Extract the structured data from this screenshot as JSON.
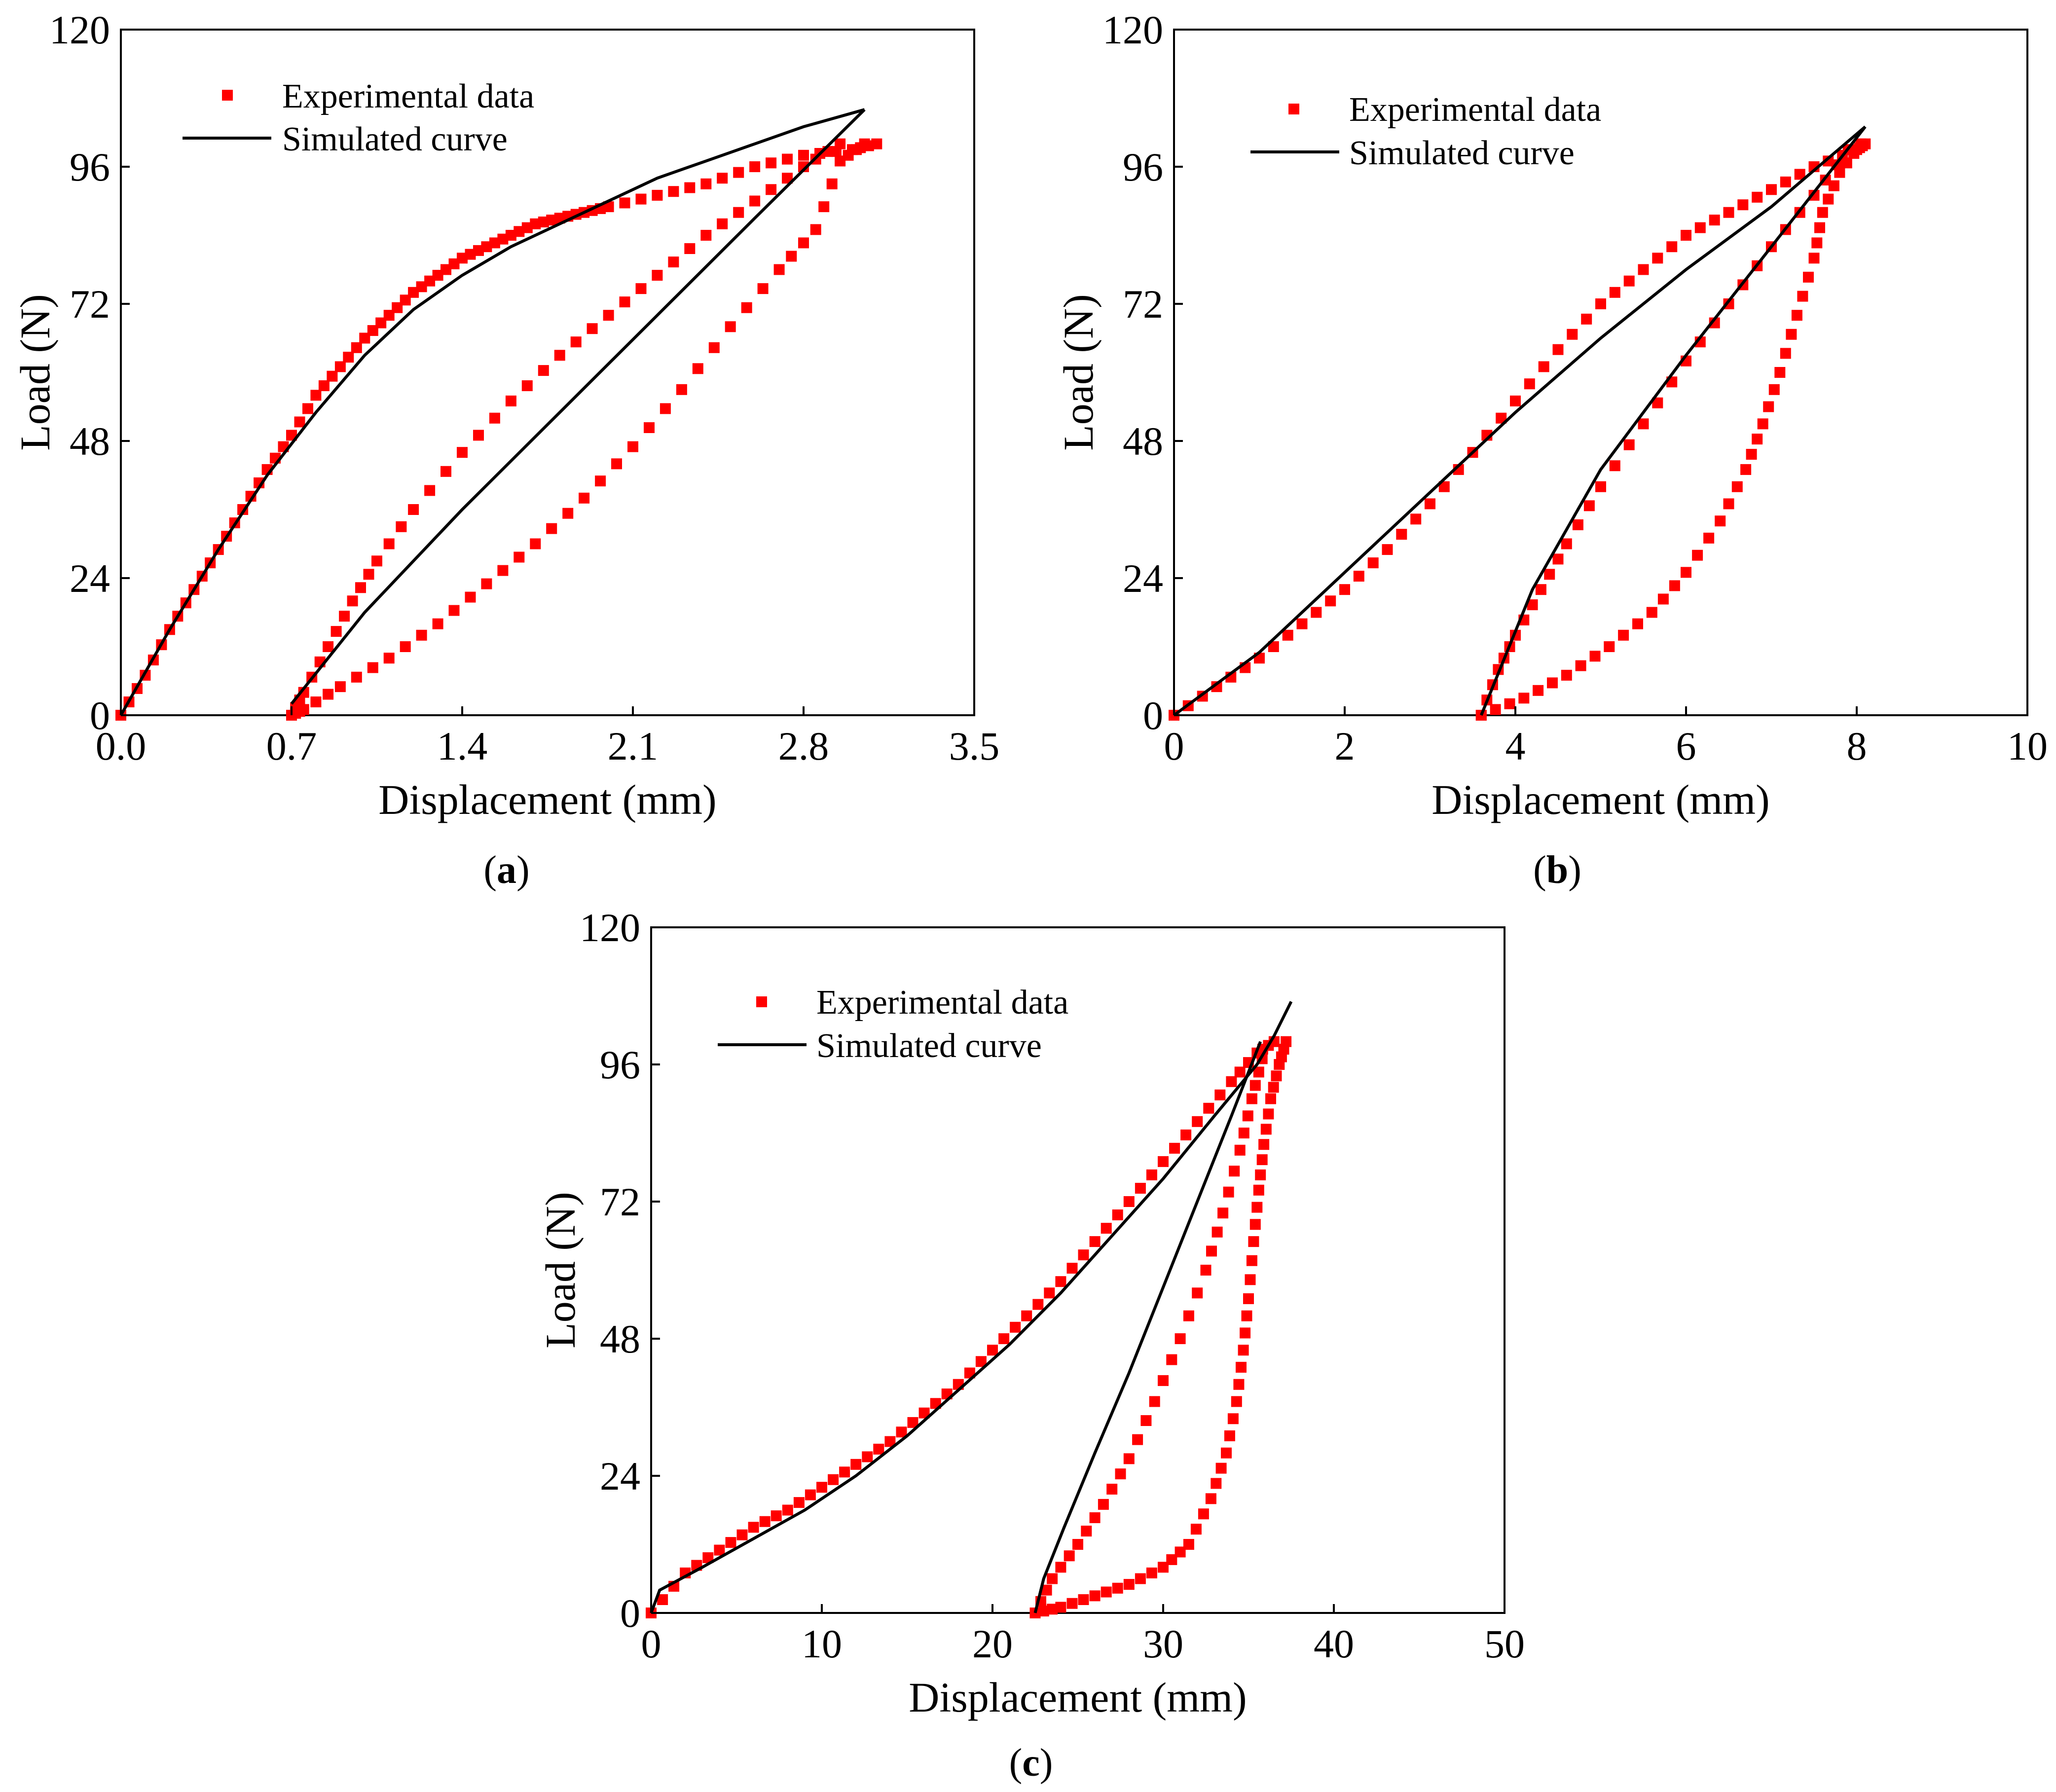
{
  "figure": {
    "panels": [
      {
        "caption_letter": "a",
        "xlabel": "Displacement (mm)",
        "ylabel": "Load (N)",
        "legend": {
          "experimental": "Experimental data",
          "simulated": "Simulated curve"
        }
      },
      {
        "caption_letter": "b",
        "xlabel": "Displacement (mm)",
        "ylabel": "Load (N)",
        "legend": {
          "experimental": "Experimental data",
          "simulated": "Simulated curve"
        }
      },
      {
        "caption_letter": "c",
        "xlabel": "Displacement (mm)",
        "ylabel": "Load (N)",
        "legend": {
          "experimental": "Experimental data",
          "simulated": "Simulated curve"
        }
      }
    ]
  },
  "chart_data": [
    {
      "panel": "a",
      "type": "scatter",
      "xlabel": "Displacement (mm)",
      "ylabel": "Load (N)",
      "xlim": [
        0.0,
        3.5
      ],
      "ylim": [
        0,
        120
      ],
      "x_ticks": [
        "0.0",
        "0.7",
        "1.4",
        "2.1",
        "2.8",
        "3.5"
      ],
      "y_ticks": [
        "0",
        "24",
        "48",
        "72",
        "96",
        "120"
      ],
      "legend_position": "top-left",
      "series": [
        {
          "name": "Experimental data",
          "marker": "square",
          "color": "#ff0000",
          "loading": [
            [
              0.0,
              0
            ],
            [
              0.1,
              7
            ],
            [
              0.2,
              15
            ],
            [
              0.3,
              22
            ],
            [
              0.4,
              29
            ],
            [
              0.5,
              36
            ],
            [
              0.6,
              43
            ],
            [
              0.7,
              49
            ],
            [
              0.8,
              56
            ],
            [
              0.9,
              61
            ],
            [
              1.0,
              66
            ],
            [
              1.1,
              70
            ],
            [
              1.2,
              74
            ],
            [
              1.3,
              77
            ],
            [
              1.4,
              80
            ],
            [
              1.5,
              82
            ],
            [
              1.6,
              84
            ],
            [
              1.7,
              86
            ],
            [
              1.8,
              87
            ],
            [
              1.9,
              88
            ],
            [
              2.0,
              89
            ],
            [
              2.2,
              91
            ],
            [
              2.4,
              93
            ],
            [
              2.6,
              96
            ],
            [
              2.8,
              98
            ],
            [
              3.0,
              99
            ],
            [
              3.1,
              100
            ]
          ],
          "unloading": [
            [
              3.05,
              100
            ],
            [
              2.95,
              97
            ],
            [
              2.85,
              85
            ],
            [
              2.7,
              78
            ],
            [
              2.5,
              68
            ],
            [
              2.3,
              57
            ],
            [
              2.1,
              47
            ],
            [
              1.9,
              38
            ],
            [
              1.7,
              30
            ],
            [
              1.5,
              23
            ],
            [
              1.3,
              16
            ],
            [
              1.1,
              10
            ],
            [
              0.9,
              5
            ],
            [
              0.75,
              1
            ],
            [
              0.7,
              0
            ]
          ],
          "reloading": [
            [
              0.7,
              0
            ],
            [
              0.75,
              4
            ],
            [
              0.85,
              12
            ],
            [
              0.95,
              20
            ],
            [
              1.05,
              27
            ],
            [
              1.2,
              36
            ],
            [
              1.4,
              46
            ],
            [
              1.6,
              55
            ],
            [
              1.8,
              63
            ],
            [
              2.0,
              70
            ],
            [
              2.2,
              77
            ],
            [
              2.4,
              84
            ],
            [
              2.6,
              90
            ],
            [
              2.8,
              96
            ],
            [
              2.95,
              100
            ]
          ]
        },
        {
          "name": "Simulated curve",
          "color": "#000000",
          "loading": [
            [
              0.0,
              0
            ],
            [
              0.2,
              15
            ],
            [
              0.4,
              29
            ],
            [
              0.6,
              42
            ],
            [
              0.8,
              53
            ],
            [
              1.0,
              63
            ],
            [
              1.2,
              71
            ],
            [
              1.4,
              77
            ],
            [
              1.6,
              82
            ],
            [
              1.8,
              86
            ],
            [
              2.0,
              90
            ],
            [
              2.2,
              94
            ],
            [
              2.4,
              97
            ],
            [
              2.6,
              100
            ],
            [
              2.8,
              103
            ],
            [
              3.05,
              106
            ]
          ],
          "unloading": [
            [
              3.05,
              106
            ],
            [
              2.6,
              87
            ],
            [
              2.2,
              70
            ],
            [
              1.8,
              53
            ],
            [
              1.4,
              36
            ],
            [
              1.0,
              18
            ],
            [
              0.7,
              2
            ]
          ]
        }
      ]
    },
    {
      "panel": "b",
      "type": "scatter",
      "xlabel": "Displacement (mm)",
      "ylabel": "Load (N)",
      "xlim": [
        0,
        10
      ],
      "ylim": [
        0,
        120
      ],
      "x_ticks": [
        "0",
        "2",
        "4",
        "6",
        "8",
        "10"
      ],
      "y_ticks": [
        "0",
        "24",
        "48",
        "72",
        "96",
        "120"
      ],
      "legend_position": "top-left",
      "series": [
        {
          "name": "Experimental data",
          "marker": "square",
          "color": "#ff0000",
          "loading": [
            [
              0.0,
              0
            ],
            [
              0.5,
              5
            ],
            [
              1.0,
              10
            ],
            [
              1.5,
              16
            ],
            [
              2.0,
              22
            ],
            [
              2.5,
              29
            ],
            [
              3.0,
              37
            ],
            [
              3.5,
              46
            ],
            [
              4.0,
              55
            ],
            [
              4.5,
              64
            ],
            [
              5.0,
              72
            ],
            [
              5.5,
              78
            ],
            [
              6.0,
              84
            ],
            [
              6.5,
              88
            ],
            [
              7.0,
              92
            ],
            [
              7.5,
              96
            ],
            [
              8.0,
              99
            ],
            [
              8.1,
              100
            ]
          ],
          "unloading": [
            [
              8.05,
              100
            ],
            [
              7.8,
              95
            ],
            [
              7.6,
              88
            ],
            [
              7.5,
              80
            ],
            [
              7.3,
              70
            ],
            [
              7.1,
              60
            ],
            [
              6.9,
              51
            ],
            [
              6.7,
              43
            ],
            [
              6.4,
              34
            ],
            [
              6.0,
              25
            ],
            [
              5.6,
              18
            ],
            [
              5.1,
              12
            ],
            [
              4.6,
              7
            ],
            [
              4.1,
              3
            ],
            [
              3.6,
              0
            ]
          ],
          "reloading": [
            [
              3.6,
              0
            ],
            [
              3.8,
              8
            ],
            [
              4.0,
              14
            ],
            [
              4.3,
              22
            ],
            [
              4.6,
              30
            ],
            [
              5.0,
              40
            ],
            [
              5.5,
              51
            ],
            [
              6.0,
              62
            ],
            [
              6.5,
              72
            ],
            [
              7.0,
              82
            ],
            [
              7.5,
              91
            ],
            [
              7.9,
              99
            ]
          ]
        },
        {
          "name": "Simulated curve",
          "color": "#000000",
          "loading": [
            [
              0.0,
              0
            ],
            [
              1.0,
              11
            ],
            [
              2.0,
              25
            ],
            [
              3.0,
              39
            ],
            [
              4.0,
              53
            ],
            [
              5.0,
              66
            ],
            [
              6.0,
              78
            ],
            [
              7.0,
              89
            ],
            [
              8.1,
              103
            ]
          ],
          "unloading": [
            [
              8.1,
              103
            ],
            [
              7.0,
              82
            ],
            [
              6.0,
              63
            ],
            [
              5.0,
              43
            ],
            [
              4.2,
              22
            ],
            [
              3.6,
              0
            ]
          ]
        }
      ]
    },
    {
      "panel": "c",
      "type": "scatter",
      "xlabel": "Displacement (mm)",
      "ylabel": "Load (N)",
      "xlim": [
        0,
        50
      ],
      "ylim": [
        0,
        120
      ],
      "x_ticks": [
        "0",
        "10",
        "20",
        "30",
        "40",
        "50"
      ],
      "y_ticks": [
        "0",
        "24",
        "48",
        "72",
        "96",
        "120"
      ],
      "legend_position": "top-left",
      "series": [
        {
          "name": "Experimental data",
          "marker": "square",
          "color": "#ff0000",
          "loading": [
            [
              0.0,
              0
            ],
            [
              2,
              7
            ],
            [
              4,
              11
            ],
            [
              6,
              15
            ],
            [
              8,
              18
            ],
            [
              10,
              22
            ],
            [
              12,
              26
            ],
            [
              14,
              30
            ],
            [
              16,
              35
            ],
            [
              18,
              40
            ],
            [
              20,
              46
            ],
            [
              22,
              52
            ],
            [
              24,
              58
            ],
            [
              26,
              65
            ],
            [
              28,
              72
            ],
            [
              30,
              79
            ],
            [
              32,
              86
            ],
            [
              34,
              93
            ],
            [
              35.5,
              98
            ],
            [
              36.5,
              100
            ]
          ],
          "unloading": [
            [
              37.2,
              100
            ],
            [
              36.8,
              96
            ],
            [
              36.3,
              90
            ],
            [
              35.9,
              82
            ],
            [
              35.6,
              74
            ],
            [
              35.3,
              65
            ],
            [
              35.0,
              55
            ],
            [
              34.7,
              46
            ],
            [
              34.3,
              37
            ],
            [
              33.7,
              28
            ],
            [
              32.8,
              20
            ],
            [
              31.5,
              12
            ],
            [
              30.0,
              8
            ],
            [
              28,
              5
            ],
            [
              26,
              3
            ],
            [
              24,
              1
            ],
            [
              22.5,
              0
            ]
          ],
          "reloading": [
            [
              22.5,
              0
            ],
            [
              23.5,
              6
            ],
            [
              25,
              12
            ],
            [
              26.5,
              19
            ],
            [
              28,
              27
            ],
            [
              29.5,
              37
            ],
            [
              31,
              48
            ],
            [
              32.5,
              60
            ],
            [
              33.5,
              70
            ],
            [
              34.5,
              81
            ],
            [
              35.2,
              90
            ],
            [
              35.8,
              97
            ]
          ]
        },
        {
          "name": "Simulated curve",
          "color": "#000000",
          "loading": [
            [
              0.0,
              0
            ],
            [
              0.5,
              4
            ],
            [
              3,
              8
            ],
            [
              6,
              13
            ],
            [
              9,
              18
            ],
            [
              12,
              24
            ],
            [
              15,
              31
            ],
            [
              18,
              39
            ],
            [
              21,
              47
            ],
            [
              24,
              56
            ],
            [
              27,
              66
            ],
            [
              30,
              76
            ],
            [
              33,
              87
            ],
            [
              35.5,
              96
            ],
            [
              36.5,
              101
            ],
            [
              37.5,
              107
            ]
          ],
          "unloading": [
            [
              35.7,
              100
            ],
            [
              34,
              87
            ],
            [
              32,
              72
            ],
            [
              30,
              57
            ],
            [
              28,
              42
            ],
            [
              26,
              28
            ],
            [
              24.2,
              15
            ],
            [
              23.0,
              6
            ],
            [
              22.5,
              0
            ]
          ]
        }
      ]
    }
  ]
}
